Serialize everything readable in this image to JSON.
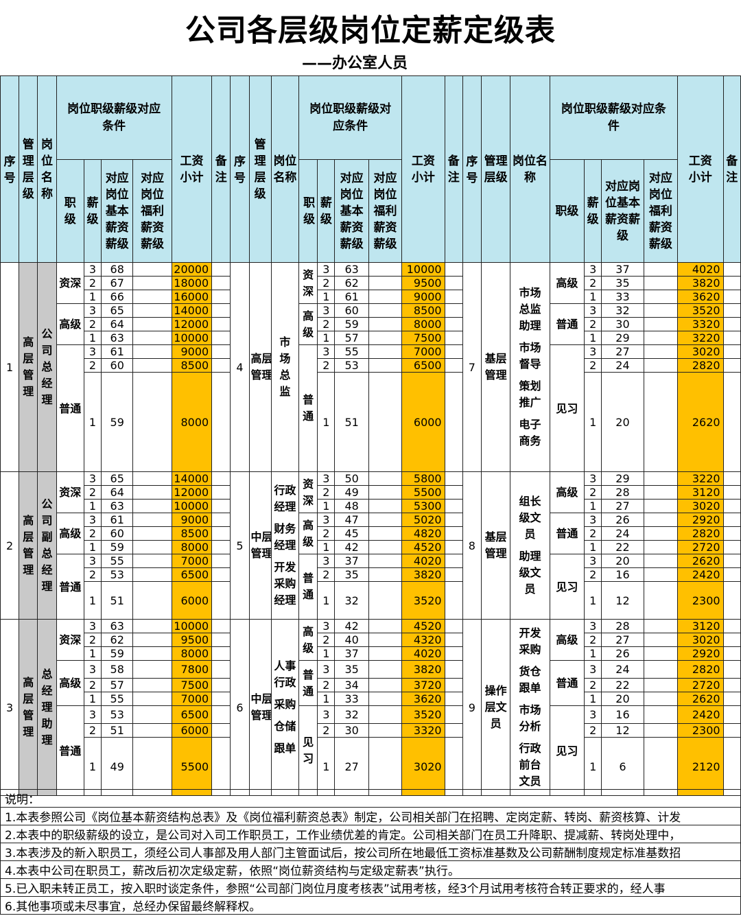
{
  "title": "公司各层级岗位定薪定级表",
  "subtitle": "——办公室人员",
  "headers": {
    "seq": "序号",
    "level": "管理层级",
    "position": "岗位名称",
    "condition": "岗位职级薪级对应条件",
    "condition_b": "岗位职级薪级对应条件",
    "condition_c": "岗位职级薪级对应条件",
    "rank": "职级",
    "grade": "薪级",
    "base": "对应岗位基本薪资薪级",
    "welfare": "对应岗位福利薪资薪级",
    "subtotal": "工资小计",
    "remark": "备注"
  },
  "blocks": [
    {
      "a": {
        "seq": "1",
        "level": "高层管理",
        "position": "公司总经理",
        "ranks": [
          "资深",
          "高级",
          "普通"
        ],
        "rows": [
          [
            "3",
            "68",
            "20000"
          ],
          [
            "2",
            "67",
            "18000"
          ],
          [
            "1",
            "66",
            "16000"
          ],
          [
            "3",
            "65",
            "14000"
          ],
          [
            "2",
            "64",
            "12000"
          ],
          [
            "1",
            "63",
            "10000"
          ],
          [
            "3",
            "61",
            "9000"
          ],
          [
            "2",
            "60",
            "8500"
          ],
          [
            "1",
            "59",
            "8000"
          ]
        ]
      },
      "b": {
        "seq": "4",
        "level": "高层管理",
        "position": "市场总监",
        "ranks": [
          "资深",
          "高级",
          "普通"
        ],
        "rows": [
          [
            "3",
            "63",
            "10000"
          ],
          [
            "2",
            "62",
            "9500"
          ],
          [
            "1",
            "61",
            "9000"
          ],
          [
            "3",
            "60",
            "8500"
          ],
          [
            "2",
            "59",
            "8000"
          ],
          [
            "1",
            "57",
            "7500"
          ],
          [
            "3",
            "55",
            "7000"
          ],
          [
            "2",
            "53",
            "6500"
          ],
          [
            "1",
            "51",
            "6000"
          ]
        ]
      },
      "c": {
        "seq": "7",
        "level": "基层管理",
        "positions": [
          "市场总监助理",
          "市场督导",
          "策划推广",
          "电子商务"
        ],
        "ranks": [
          "高级",
          "普通",
          "见习"
        ],
        "rows": [
          [
            "3",
            "37",
            "4020"
          ],
          [
            "2",
            "35",
            "3820"
          ],
          [
            "1",
            "33",
            "3620"
          ],
          [
            "3",
            "32",
            "3520"
          ],
          [
            "2",
            "30",
            "3320"
          ],
          [
            "1",
            "29",
            "3220"
          ],
          [
            "3",
            "27",
            "3020"
          ],
          [
            "2",
            "24",
            "2820"
          ],
          [
            "1",
            "20",
            "2620"
          ]
        ]
      }
    },
    {
      "a": {
        "seq": "2",
        "level": "高层管理",
        "position": "公司副总经理",
        "ranks": [
          "资深",
          "高级",
          "普通"
        ],
        "rows": [
          [
            "3",
            "65",
            "14000"
          ],
          [
            "2",
            "64",
            "12000"
          ],
          [
            "1",
            "63",
            "10000"
          ],
          [
            "3",
            "61",
            "9000"
          ],
          [
            "2",
            "60",
            "8500"
          ],
          [
            "1",
            "59",
            "8000"
          ],
          [
            "3",
            "55",
            "7000"
          ],
          [
            "2",
            "53",
            "6500"
          ],
          [
            "1",
            "51",
            "6000"
          ]
        ]
      },
      "b": {
        "seq": "5",
        "level": "中层管理",
        "positions": [
          "行政经理",
          "财务经理",
          "开发采购经理"
        ],
        "ranks": [
          "资深",
          "高级",
          "普通"
        ],
        "rows": [
          [
            "3",
            "50",
            "5800"
          ],
          [
            "2",
            "49",
            "5500"
          ],
          [
            "1",
            "48",
            "5300"
          ],
          [
            "3",
            "47",
            "5020"
          ],
          [
            "2",
            "45",
            "4820"
          ],
          [
            "1",
            "42",
            "4520"
          ],
          [
            "3",
            "37",
            "4020"
          ],
          [
            "2",
            "35",
            "3820"
          ],
          [
            "1",
            "32",
            "3520"
          ]
        ]
      },
      "c": {
        "seq": "8",
        "level": "基层管理",
        "positions": [
          "组长级文员",
          "助理级文员"
        ],
        "ranks": [
          "高级",
          "普通",
          "见习"
        ],
        "rows": [
          [
            "3",
            "29",
            "3220"
          ],
          [
            "2",
            "28",
            "3120"
          ],
          [
            "1",
            "27",
            "3020"
          ],
          [
            "3",
            "26",
            "2920"
          ],
          [
            "2",
            "24",
            "2820"
          ],
          [
            "1",
            "22",
            "2720"
          ],
          [
            "3",
            "20",
            "2620"
          ],
          [
            "2",
            "16",
            "2420"
          ],
          [
            "1",
            "12",
            "2300"
          ]
        ]
      }
    },
    {
      "a": {
        "seq": "3",
        "level": "高层管理",
        "position": "总经理助理",
        "ranks": [
          "资深",
          "高级",
          "普通"
        ],
        "rows": [
          [
            "3",
            "63",
            "10000"
          ],
          [
            "2",
            "62",
            "9500"
          ],
          [
            "1",
            "59",
            "8000"
          ],
          [
            "3",
            "58",
            "7800"
          ],
          [
            "2",
            "57",
            "7500"
          ],
          [
            "1",
            "55",
            "7000"
          ],
          [
            "3",
            "53",
            "6500"
          ],
          [
            "2",
            "51",
            "6000"
          ],
          [
            "1",
            "49",
            "5500"
          ]
        ]
      },
      "b": {
        "seq": "6",
        "level": "中层管理",
        "positions": [
          "人事行政",
          "采购",
          "仓储",
          "跟单"
        ],
        "ranks": [
          "高级",
          "普通",
          "见习"
        ],
        "rows": [
          [
            "3",
            "42",
            "4520"
          ],
          [
            "2",
            "40",
            "4320"
          ],
          [
            "1",
            "37",
            "4020"
          ],
          [
            "3",
            "35",
            "3820"
          ],
          [
            "2",
            "34",
            "3720"
          ],
          [
            "1",
            "33",
            "3620"
          ],
          [
            "3",
            "32",
            "3520"
          ],
          [
            "2",
            "30",
            "3320"
          ],
          [
            "1",
            "27",
            "3020"
          ]
        ]
      },
      "c": {
        "seq": "9",
        "level": "操作层文员",
        "positions": [
          "开发采购",
          "货仓跟单",
          "市场分析",
          "行政前台文员"
        ],
        "ranks": [
          "高级",
          "普通",
          "见习"
        ],
        "rows": [
          [
            "3",
            "28",
            "3120"
          ],
          [
            "2",
            "27",
            "3020"
          ],
          [
            "1",
            "26",
            "2920"
          ],
          [
            "3",
            "24",
            "2820"
          ],
          [
            "2",
            "22",
            "2720"
          ],
          [
            "1",
            "20",
            "2620"
          ],
          [
            "3",
            "16",
            "2420"
          ],
          [
            "2",
            "12",
            "2300"
          ],
          [
            "1",
            "6",
            "2120"
          ]
        ]
      }
    }
  ],
  "notes": [
    "说明：",
    "1.本表参照公司《岗位基本薪资结构总表》及《岗位福利薪资总表》制定，公司相关部门在招聘、定岗定薪、转岗、薪资核算、计发",
    "2.本表中的职级薪级的设立，是公司对入司工作职员工，工作业绩优差的肯定。公司相关部门在员工升降职、提减薪、转岗处理中，",
    "3.本表涉及的新入职员工，须经公司人事部及用人部门主管面试后，按公司所在地最低工资标准基数及公司薪酬制度规定标准基数招",
    "4.本表中公司在职员工，薪改后初次定级定薪，依照“岗位薪资结构与定级定薪表”执行。",
    "5.已入职未转正员工，按入职时谈定条件，参照“公司部门岗位月度考核表”试用考核，经3个月试用考核符合转正要求的，经人事",
    "6.其他事项或未尽事宜，总经办保留最终解释权。"
  ]
}
